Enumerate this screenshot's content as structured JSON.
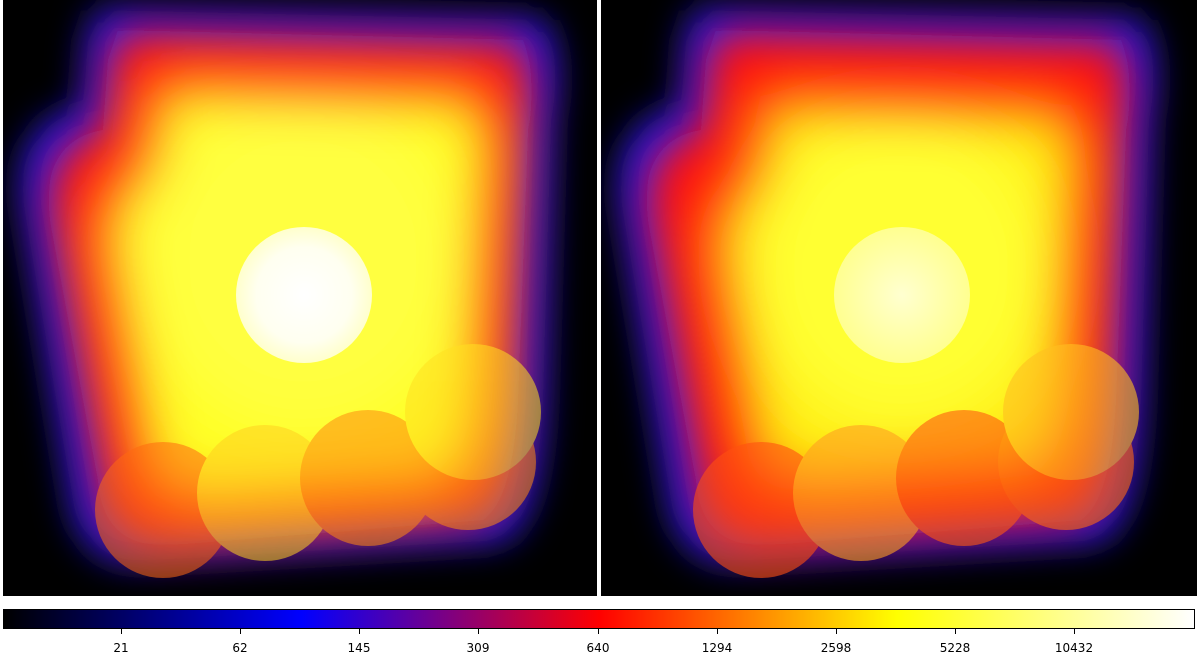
{
  "panels": [
    {
      "name": "left",
      "background": "#000000"
    },
    {
      "name": "right",
      "background": "#000000"
    }
  ],
  "colorbar": {
    "colormap": "heat",
    "colors": [
      "#000000",
      "#0000ff",
      "#ff0000",
      "#ffff00",
      "#ffffff"
    ],
    "ticks": [
      "21",
      "62",
      "145",
      "309",
      "640",
      "1294",
      "2598",
      "5228",
      "10432"
    ]
  }
}
